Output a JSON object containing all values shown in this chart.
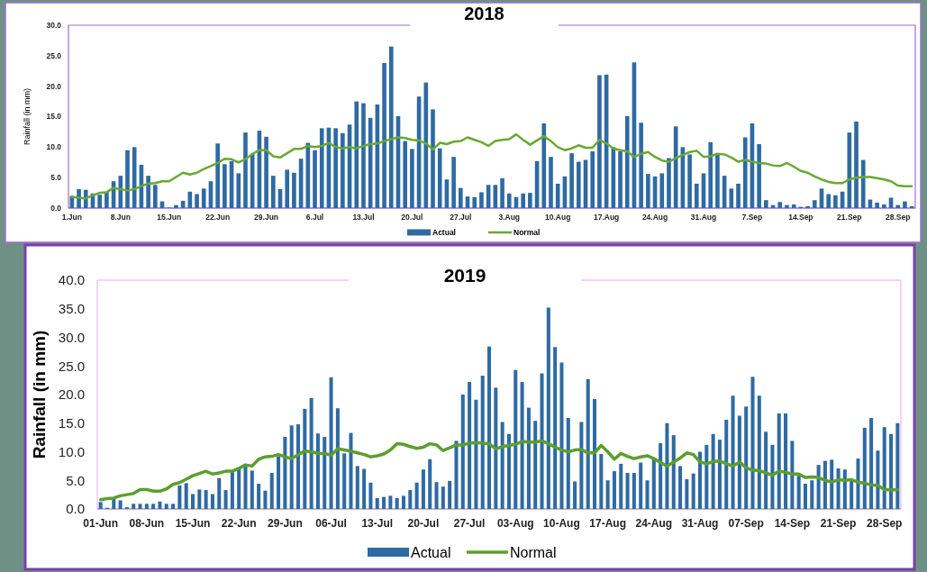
{
  "chart_data": [
    {
      "type": "bar",
      "title": "2018",
      "ylabel": "Rainfall (in mm)",
      "legend": "bottom",
      "ylim": [
        0,
        30
      ],
      "yticks": [
        {
          "value": 0,
          "label": "0.0"
        },
        {
          "value": 5,
          "label": "5.0"
        },
        {
          "value": 10,
          "label": "10.0"
        },
        {
          "value": 15,
          "label": "15.0"
        },
        {
          "value": 20,
          "label": "20.0"
        },
        {
          "value": 25,
          "label": "25.0"
        },
        {
          "value": 30,
          "label": "30.0"
        }
      ],
      "categories": [
        "1.Jun",
        null,
        null,
        null,
        null,
        null,
        null,
        "8.Jun",
        null,
        null,
        null,
        null,
        null,
        null,
        "15.Jun",
        null,
        null,
        null,
        null,
        null,
        null,
        "22.Jun",
        null,
        null,
        null,
        null,
        null,
        null,
        "29.Jun",
        null,
        null,
        null,
        null,
        null,
        null,
        "6.Jul",
        null,
        null,
        null,
        null,
        null,
        null,
        "13.Jul",
        null,
        null,
        null,
        null,
        null,
        null,
        "20.Jul",
        null,
        null,
        null,
        null,
        null,
        null,
        "27.Jul",
        null,
        null,
        null,
        null,
        null,
        null,
        "3.Aug",
        null,
        null,
        null,
        null,
        null,
        null,
        "10.Aug",
        null,
        null,
        null,
        null,
        null,
        null,
        "17.Aug",
        null,
        null,
        null,
        null,
        null,
        null,
        "24.Aug",
        null,
        null,
        null,
        null,
        null,
        null,
        "31.Aug",
        null,
        null,
        null,
        null,
        null,
        null,
        "7.Sep",
        null,
        null,
        null,
        null,
        null,
        null,
        "14.Sep",
        null,
        null,
        null,
        null,
        null,
        null,
        "21.Sep",
        null,
        null,
        null,
        null,
        null,
        null,
        "28.Sep",
        null,
        null
      ],
      "series": [
        {
          "name": "Actual",
          "color": "#2e6aa3",
          "values": [
            2.0,
            3.1,
            3.0,
            2.4,
            2.2,
            2.7,
            4.4,
            5.3,
            9.5,
            10.0,
            7.1,
            5.3,
            3.8,
            1.1,
            0.1,
            0.5,
            1.2,
            2.7,
            2.3,
            3.2,
            4.4,
            10.6,
            7.2,
            7.7,
            5.7,
            12.4,
            8.9,
            12.7,
            11.7,
            5.3,
            3.1,
            6.3,
            5.8,
            8.1,
            10.7,
            9.5,
            13.1,
            13.2,
            13.1,
            12.3,
            13.7,
            17.5,
            17.2,
            14.8,
            17.0,
            23.8,
            26.5,
            15.1,
            11.0,
            9.7,
            18.3,
            20.6,
            16.2,
            9.8,
            4.7,
            8.4,
            3.3,
            1.9,
            1.8,
            2.6,
            3.8,
            3.8,
            4.9,
            2.4,
            1.8,
            2.4,
            2.5,
            7.7,
            13.9,
            8.4,
            4.0,
            5.2,
            9.0,
            7.6,
            7.9,
            9.3,
            21.8,
            21.9,
            10.0,
            9.3,
            15.1,
            23.9,
            14.0,
            5.6,
            5.2,
            5.7,
            8.2,
            13.4,
            10.0,
            8.8,
            4.0,
            5.7,
            10.8,
            8.8,
            5.3,
            3.2,
            4.0,
            11.6,
            13.9,
            10.5,
            1.3,
            0.5,
            1.0,
            0.5,
            0.6,
            0.2,
            0.3,
            1.3,
            3.2,
            2.3,
            2.1,
            2.7,
            12.4,
            14.2,
            7.9,
            1.4,
            0.9,
            0.6,
            1.7,
            0.5,
            1.1,
            0.3
          ]
        },
        {
          "name": "Normal",
          "type": "line",
          "color": "#6aa832",
          "values": [
            1.8,
            1.7,
            1.6,
            2.1,
            2.5,
            2.6,
            3.3,
            3.1,
            2.9,
            3.1,
            3.6,
            4.0,
            4.1,
            4.4,
            4.4,
            5.1,
            5.8,
            5.5,
            5.8,
            6.4,
            6.9,
            7.4,
            8.1,
            8.0,
            7.5,
            8.0,
            8.9,
            9.5,
            9.5,
            8.5,
            8.3,
            9.0,
            9.7,
            9.7,
            10.2,
            10.0,
            10.2,
            10.7,
            10.0,
            9.8,
            10.0,
            9.8,
            10.2,
            10.5,
            10.6,
            11.0,
            11.3,
            11.6,
            11.5,
            11.2,
            11.1,
            10.6,
            9.6,
            10.7,
            10.5,
            10.9,
            11.0,
            11.6,
            11.2,
            10.8,
            10.2,
            11.0,
            11.2,
            11.3,
            12.1,
            11.2,
            10.4,
            11.1,
            11.8,
            11.0,
            10.0,
            9.5,
            9.8,
            10.3,
            9.9,
            9.9,
            11.2,
            10.6,
            9.8,
            9.5,
            9.3,
            8.4,
            8.9,
            9.2,
            8.4,
            7.8,
            7.6,
            8.2,
            8.7,
            9.2,
            9.4,
            8.4,
            8.5,
            8.9,
            8.8,
            8.3,
            7.6,
            7.9,
            7.6,
            7.4,
            7.3,
            7.0,
            6.9,
            7.4,
            6.8,
            6.1,
            5.8,
            5.2,
            4.7,
            4.3,
            4.1,
            4.1,
            4.7,
            5.0,
            5.1,
            5.1,
            4.9,
            4.7,
            4.4,
            3.7,
            3.6,
            3.6
          ]
        }
      ]
    },
    {
      "type": "bar",
      "title": "2019",
      "ylabel": "Rainfall (in mm)",
      "legend": "bottom",
      "ylim": [
        0,
        40
      ],
      "yticks": [
        {
          "value": 0,
          "label": "0.0"
        },
        {
          "value": 5,
          "label": "5.0"
        },
        {
          "value": 10,
          "label": "10.0"
        },
        {
          "value": 15,
          "label": "15.0"
        },
        {
          "value": 20,
          "label": "20.0"
        },
        {
          "value": 25,
          "label": "25.0"
        },
        {
          "value": 30,
          "label": "30.0"
        },
        {
          "value": 35,
          "label": "35.0"
        },
        {
          "value": 40,
          "label": "40.0"
        }
      ],
      "categories": [
        "01-Jun",
        null,
        null,
        null,
        null,
        null,
        null,
        "08-Jun",
        null,
        null,
        null,
        null,
        null,
        null,
        "15-Jun",
        null,
        null,
        null,
        null,
        null,
        null,
        "22-Jun",
        null,
        null,
        null,
        null,
        null,
        null,
        "29-Jun",
        null,
        null,
        null,
        null,
        null,
        null,
        "06-Jul",
        null,
        null,
        null,
        null,
        null,
        null,
        "13-Jul",
        null,
        null,
        null,
        null,
        null,
        null,
        "20-Jul",
        null,
        null,
        null,
        null,
        null,
        null,
        "27-Jul",
        null,
        null,
        null,
        null,
        null,
        null,
        "03-Aug",
        null,
        null,
        null,
        null,
        null,
        null,
        "10-Aug",
        null,
        null,
        null,
        null,
        null,
        null,
        "17-Aug",
        null,
        null,
        null,
        null,
        null,
        null,
        "24-Aug",
        null,
        null,
        null,
        null,
        null,
        null,
        "31-Aug",
        null,
        null,
        null,
        null,
        null,
        null,
        "07-Sep",
        null,
        null,
        null,
        null,
        null,
        null,
        "14-Sep",
        null,
        null,
        null,
        null,
        null,
        null,
        "21-Sep",
        null,
        null,
        null,
        null,
        null,
        null,
        "28-Sep",
        null,
        null
      ],
      "series": [
        {
          "name": "Actual",
          "color": "#2e6aa3",
          "values": [
            1.2,
            0.2,
            1.8,
            1.5,
            0.3,
            0.9,
            0.9,
            0.9,
            0.9,
            1.3,
            0.9,
            0.9,
            4.1,
            4.5,
            2.6,
            3.4,
            3.3,
            2.6,
            5.4,
            3.3,
            6.6,
            7.2,
            7.7,
            6.7,
            4.4,
            3.2,
            6.3,
            9.2,
            12.6,
            14.6,
            14.8,
            17.5,
            19.4,
            13.2,
            12.6,
            23.0,
            17.6,
            9.7,
            13.3,
            7.5,
            7.0,
            4.6,
            1.9,
            2.1,
            2.3,
            1.9,
            2.3,
            3.3,
            4.6,
            6.9,
            8.7,
            4.7,
            3.9,
            4.9,
            11.9,
            20.0,
            22.2,
            19.1,
            23.3,
            28.4,
            21.2,
            15.2,
            13.1,
            24.3,
            22.2,
            17.7,
            15.4,
            23.7,
            35.2,
            28.3,
            25.6,
            15.9,
            4.8,
            15.2,
            22.7,
            19.2,
            9.6,
            5.0,
            6.6,
            7.9,
            6.3,
            6.3,
            8.1,
            5.0,
            8.7,
            11.5,
            15.0,
            12.9,
            7.5,
            5.2,
            6.2,
            10.0,
            11.2,
            13.1,
            12.1,
            15.6,
            19.8,
            16.3,
            17.9,
            23.1,
            19.8,
            13.5,
            11.2,
            16.7,
            16.7,
            11.9,
            5.8,
            4.4,
            5.0,
            7.7,
            8.4,
            8.6,
            7.1,
            6.9,
            5.0,
            8.8,
            14.2,
            15.9,
            10.2,
            14.3,
            13.1,
            15.0
          ]
        },
        {
          "name": "Normal",
          "type": "line",
          "color": "#5c9e2e",
          "values": [
            1.6,
            1.8,
            1.9,
            2.3,
            2.5,
            2.7,
            3.4,
            3.4,
            3.1,
            3.1,
            3.5,
            4.3,
            4.6,
            5.2,
            5.8,
            6.2,
            6.6,
            6.1,
            6.3,
            6.6,
            6.6,
            7.1,
            7.7,
            7.5,
            8.7,
            9.1,
            9.2,
            9.5,
            9.1,
            8.8,
            9.5,
            10.1,
            10.0,
            9.7,
            9.7,
            9.4,
            10.5,
            10.3,
            10.1,
            9.8,
            9.5,
            9.1,
            9.3,
            9.6,
            10.3,
            11.4,
            11.3,
            10.9,
            10.6,
            10.8,
            11.4,
            11.2,
            10.2,
            10.7,
            11.2,
            11.2,
            11.5,
            11.6,
            11.5,
            11.4,
            10.5,
            10.9,
            11.1,
            11.3,
            11.8,
            11.7,
            11.7,
            11.9,
            11.4,
            10.8,
            10.3,
            10.0,
            10.3,
            10.4,
            9.8,
            9.8,
            11.1,
            10.0,
            8.7,
            9.7,
            9.2,
            8.8,
            9.1,
            9.3,
            8.8,
            8.1,
            7.5,
            8.2,
            8.9,
            9.8,
            9.5,
            8.2,
            7.9,
            8.3,
            8.4,
            7.9,
            7.5,
            8.2,
            7.2,
            6.8,
            6.7,
            6.3,
            5.9,
            6.6,
            6.4,
            6.1,
            6.1,
            5.5,
            5.6,
            5.5,
            5.0,
            4.7,
            5.1,
            5.0,
            5.1,
            4.7,
            4.5,
            4.2,
            4.1,
            3.4,
            3.3,
            3.4
          ]
        }
      ]
    }
  ]
}
